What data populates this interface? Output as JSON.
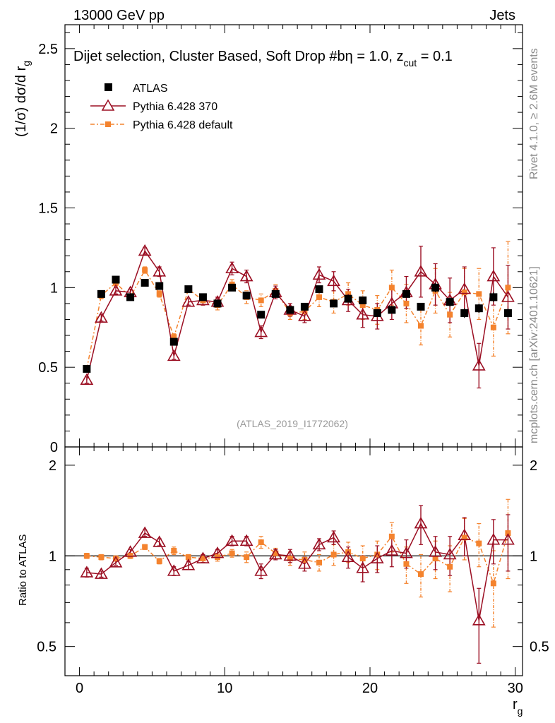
{
  "header": {
    "energy_label": "13000 GeV pp",
    "category_label": "Jets",
    "selection_label": "Dijet selection, Cluster Based, Soft Drop #b",
    "beta_label": "η = 1.0, z",
    "zcut_sub": "cut",
    "zcut_value": " = 0.1",
    "analysis_id": "(ATLAS_2019_I1772062)",
    "side_rivet": "Rivet 4.1.0, ≥ 2.6M events",
    "side_mcplots": "mcplots.cern.ch [arXiv:2401.10621]"
  },
  "colors": {
    "atlas": "#000000",
    "pythia370": "#9b0e22",
    "pythia_default": "#f4832e",
    "side_text": "#888888"
  },
  "chart_data": [
    {
      "name": "main",
      "type": "scatter",
      "ylabel_main": "(1/σ) dσ/d r",
      "ylabel_sub": "g",
      "xlabel": "r",
      "xlabel_sub": "g",
      "xlim": [
        -1,
        30.5
      ],
      "ylim": [
        0,
        2.65
      ],
      "yticks": [
        0,
        0.5,
        1,
        1.5,
        2,
        2.5
      ],
      "ytick_labels": [
        "0",
        "0.5",
        "1",
        "1.5",
        "2",
        "2.5"
      ],
      "legend": [
        {
          "label": "ATLAS",
          "series": "atlas"
        },
        {
          "label": "Pythia 6.428 370",
          "series": "pythia370"
        },
        {
          "label": "Pythia 6.428 default",
          "series": "pythia_default"
        }
      ],
      "x": [
        0.5,
        1.5,
        2.5,
        3.5,
        4.5,
        5.5,
        6.5,
        7.5,
        8.5,
        9.5,
        10.5,
        11.5,
        12.5,
        13.5,
        14.5,
        15.5,
        16.5,
        17.5,
        18.5,
        19.5,
        20.5,
        21.5,
        22.5,
        23.5,
        24.5,
        25.5,
        26.5,
        27.5,
        28.5,
        29.5
      ],
      "series": [
        {
          "name": "ATLAS",
          "key": "atlas",
          "values": [
            0.49,
            0.96,
            1.05,
            0.94,
            1.03,
            1.01,
            0.66,
            0.99,
            0.94,
            0.9,
            1.0,
            0.95,
            0.83,
            0.96,
            0.86,
            0.88,
            0.99,
            0.9,
            0.93,
            0.92,
            0.84,
            0.86,
            0.96,
            0.88,
            1.0,
            0.91,
            0.84,
            0.87,
            0.94,
            0.84
          ],
          "errors": [
            0.01,
            0.01,
            0.01,
            0.01,
            0.01,
            0.01,
            0.01,
            0.01,
            0.01,
            0.01,
            0.01,
            0.01,
            0.01,
            0.02,
            0.02,
            0.02,
            0.02,
            0.02,
            0.02,
            0.02,
            0.02,
            0.02,
            0.02,
            0.02,
            0.03,
            0.03,
            0.03,
            0.03,
            0.03,
            0.03
          ]
        },
        {
          "name": "Pythia 6.428 370",
          "key": "pythia370",
          "values": [
            0.42,
            0.81,
            0.98,
            0.97,
            1.23,
            1.1,
            0.57,
            0.91,
            0.92,
            0.91,
            1.12,
            1.07,
            0.72,
            0.97,
            0.86,
            0.82,
            1.08,
            1.04,
            0.92,
            0.83,
            0.82,
            0.9,
            0.97,
            1.1,
            1.02,
            0.92,
            0.99,
            0.51,
            1.07,
            0.94
          ],
          "errors": [
            0.02,
            0.02,
            0.02,
            0.02,
            0.02,
            0.03,
            0.02,
            0.02,
            0.03,
            0.03,
            0.04,
            0.04,
            0.04,
            0.04,
            0.04,
            0.04,
            0.05,
            0.06,
            0.07,
            0.08,
            0.08,
            0.1,
            0.1,
            0.16,
            0.13,
            0.14,
            0.14,
            0.14,
            0.18,
            0.2
          ]
        },
        {
          "name": "Pythia 6.428 default",
          "key": "pythia_default",
          "values": [
            0.49,
            0.95,
            1.03,
            0.94,
            1.11,
            0.96,
            0.69,
            0.99,
            0.92,
            0.89,
            1.02,
            0.94,
            0.92,
            0.98,
            0.84,
            0.85,
            0.94,
            0.91,
            0.96,
            0.89,
            0.86,
            1.0,
            0.9,
            0.76,
            0.98,
            0.83,
            0.97,
            0.96,
            0.75,
            1.0
          ],
          "errors": [
            0.01,
            0.02,
            0.02,
            0.02,
            0.02,
            0.02,
            0.02,
            0.02,
            0.03,
            0.03,
            0.03,
            0.04,
            0.04,
            0.04,
            0.04,
            0.05,
            0.06,
            0.07,
            0.07,
            0.09,
            0.09,
            0.11,
            0.12,
            0.12,
            0.14,
            0.14,
            0.15,
            0.16,
            0.18,
            0.29
          ]
        }
      ]
    },
    {
      "name": "ratio",
      "type": "scatter",
      "ylabel": "Ratio to ATLAS",
      "ylim": [
        0.4,
        2.3
      ],
      "yticks": [
        0.5,
        1,
        2
      ],
      "ytick_labels": [
        "0.5",
        "1",
        "2"
      ],
      "xticks": [
        0,
        10,
        20,
        30
      ],
      "xtick_labels": [
        "0",
        "10",
        "20",
        "30"
      ],
      "x": [
        0.5,
        1.5,
        2.5,
        3.5,
        4.5,
        5.5,
        6.5,
        7.5,
        8.5,
        9.5,
        10.5,
        11.5,
        12.5,
        13.5,
        14.5,
        15.5,
        16.5,
        17.5,
        18.5,
        19.5,
        20.5,
        21.5,
        22.5,
        23.5,
        24.5,
        25.5,
        26.5,
        27.5,
        28.5,
        29.5
      ],
      "series": [
        {
          "name": "Pythia 6.428 370",
          "key": "pythia370",
          "values": [
            0.88,
            0.87,
            0.95,
            1.03,
            1.19,
            1.11,
            0.89,
            0.93,
            0.98,
            1.02,
            1.12,
            1.12,
            0.89,
            1.01,
            1.0,
            0.94,
            1.09,
            1.15,
            0.99,
            0.91,
            0.98,
            1.04,
            1.02,
            1.28,
            1.03,
            1.01,
            1.17,
            0.61,
            1.13,
            1.13
          ],
          "errors": [
            0.03,
            0.02,
            0.02,
            0.02,
            0.03,
            0.03,
            0.03,
            0.03,
            0.03,
            0.03,
            0.04,
            0.04,
            0.05,
            0.04,
            0.05,
            0.05,
            0.05,
            0.06,
            0.08,
            0.09,
            0.1,
            0.12,
            0.11,
            0.19,
            0.13,
            0.15,
            0.17,
            0.17,
            0.19,
            0.24
          ]
        },
        {
          "name": "Pythia 6.428 default",
          "key": "pythia_default",
          "values": [
            1.0,
            0.99,
            0.98,
            1.0,
            1.07,
            0.96,
            1.04,
            0.99,
            0.98,
            0.99,
            1.02,
            0.99,
            1.11,
            1.02,
            0.98,
            0.97,
            0.95,
            1.01,
            1.03,
            0.98,
            1.01,
            1.16,
            0.94,
            0.87,
            0.98,
            0.92,
            1.15,
            1.1,
            0.81,
            1.19
          ],
          "errors": [
            0.02,
            0.02,
            0.02,
            0.02,
            0.02,
            0.02,
            0.03,
            0.02,
            0.03,
            0.03,
            0.03,
            0.04,
            0.05,
            0.04,
            0.05,
            0.06,
            0.06,
            0.08,
            0.08,
            0.1,
            0.11,
            0.13,
            0.13,
            0.14,
            0.14,
            0.16,
            0.18,
            0.18,
            0.23,
            0.35
          ]
        }
      ]
    }
  ]
}
